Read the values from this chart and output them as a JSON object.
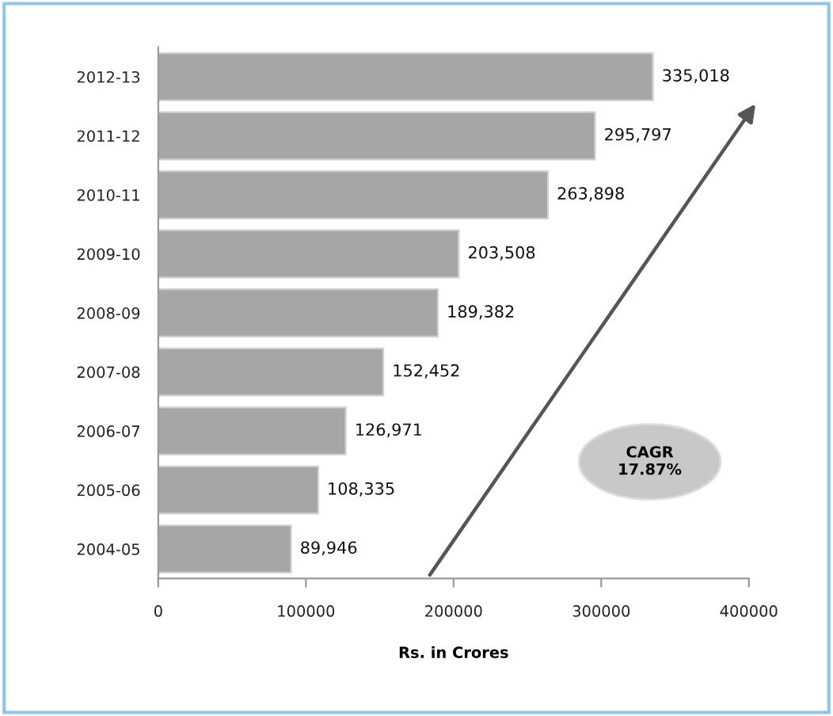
{
  "chart_data": {
    "type": "bar",
    "orientation": "horizontal",
    "xlabel": "Rs. in Crores",
    "categories": [
      "2012-13",
      "2011-12",
      "2010-11",
      "2009-10",
      "2008-09",
      "2007-08",
      "2006-07",
      "2005-06",
      "2004-05"
    ],
    "values": [
      335018,
      295797,
      263898,
      203508,
      189382,
      152452,
      126971,
      108335,
      89946
    ],
    "value_labels": [
      "335,018",
      "295,797",
      "263,898",
      "203,508",
      "189,382",
      "152,452",
      "126,971",
      "108,335",
      "89,946"
    ],
    "color": "#a6a6a6",
    "xlim": [
      0,
      400000
    ],
    "xticks": [
      0,
      100000,
      200000,
      300000,
      400000
    ],
    "annotations": [
      "CAGR\n17.87%"
    ],
    "grid": false,
    "legend": false
  }
}
